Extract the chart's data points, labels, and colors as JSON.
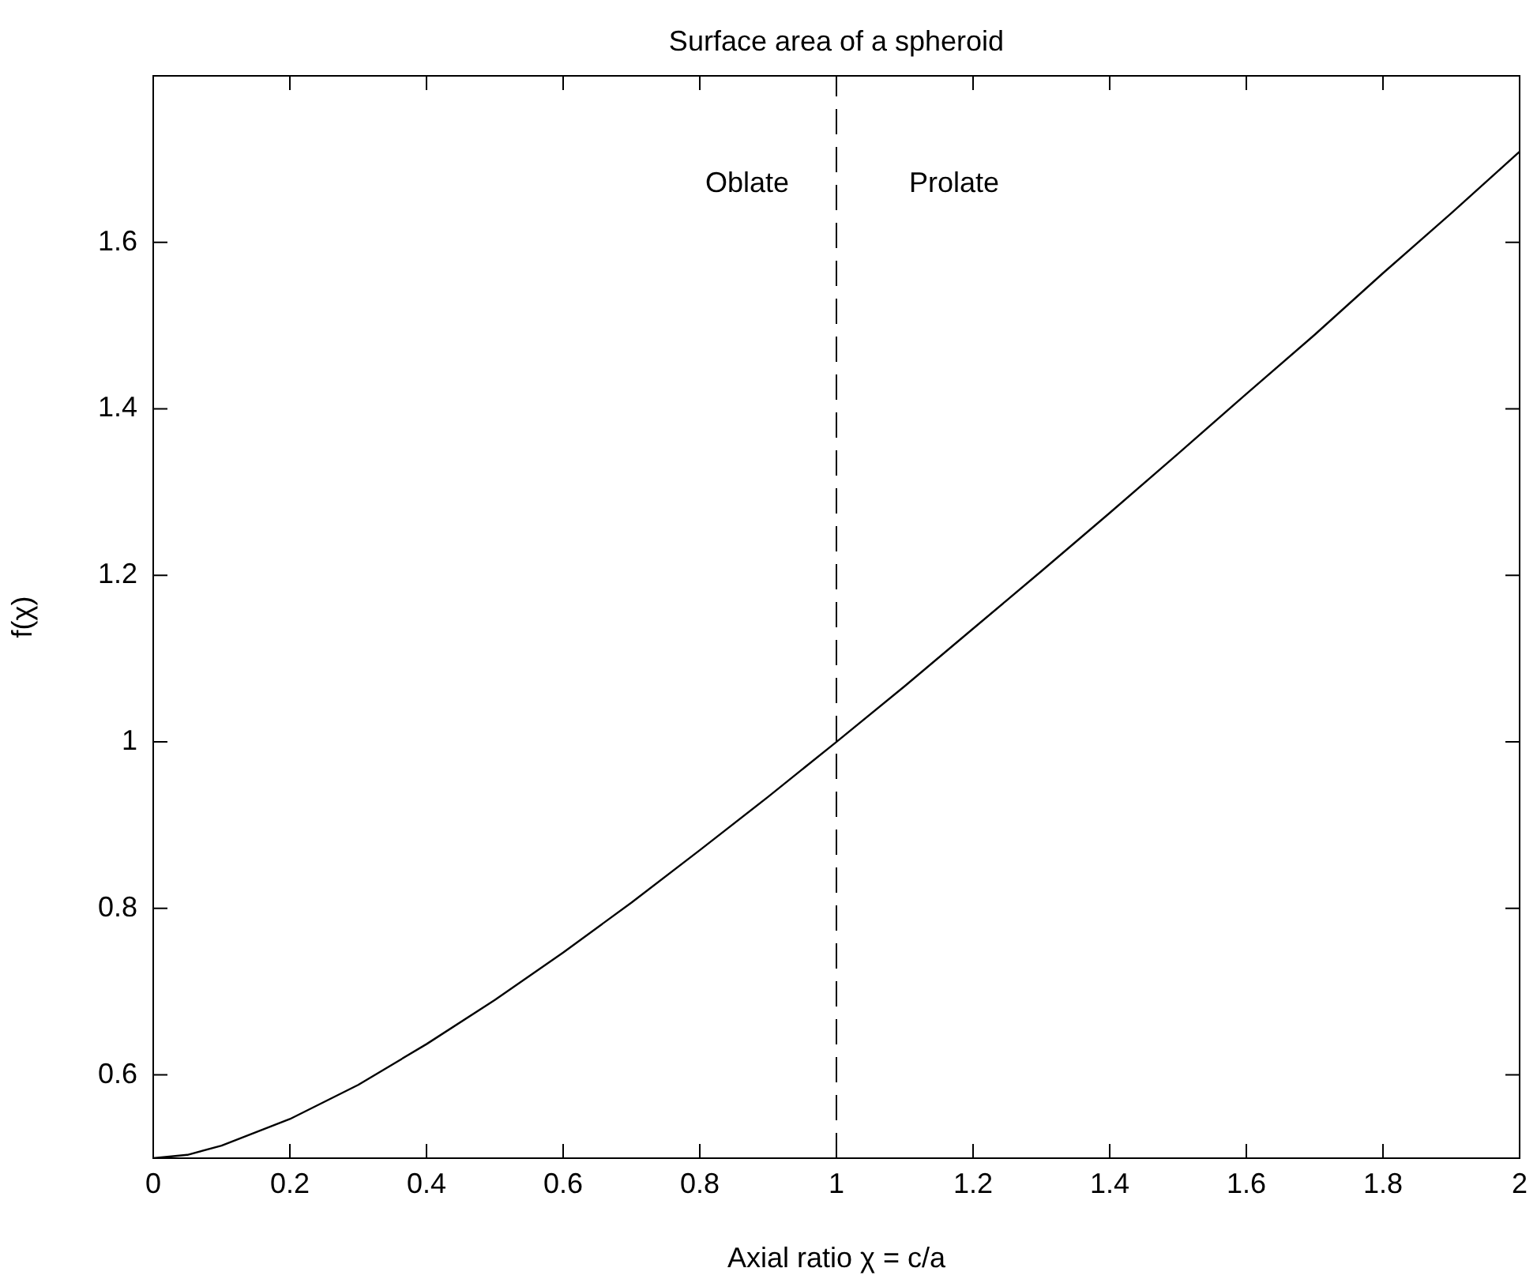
{
  "chart_data": {
    "type": "line",
    "title": "Surface area of a spheroid",
    "xlabel": "Axial ratio χ = c/a",
    "ylabel": "f(χ)",
    "x": [
      0,
      0.05,
      0.1,
      0.2,
      0.3,
      0.4,
      0.5,
      0.6,
      0.7,
      0.8,
      0.9,
      1,
      1.1,
      1.2,
      1.3,
      1.4,
      1.5,
      1.6,
      1.7,
      1.8,
      1.9,
      2
    ],
    "series": [
      {
        "color": "#000000",
        "values": [
          0.5,
          0.504,
          0.515,
          0.547,
          0.588,
          0.637,
          0.69,
          0.747,
          0.807,
          0.87,
          0.934,
          1,
          1.067,
          1.136,
          1.205,
          1.275,
          1.346,
          1.418,
          1.489,
          1.563,
          1.635,
          1.709
        ]
      }
    ],
    "xlim": [
      0,
      2
    ],
    "xticks": [
      0,
      0.2,
      0.4,
      0.6,
      0.8,
      1,
      1.2,
      1.4,
      1.6,
      1.8,
      2
    ],
    "ylim": [
      0.5,
      1.8
    ],
    "yticks": [
      0.6,
      0.8,
      1,
      1.2,
      1.4,
      1.6
    ],
    "ref_lines": [
      {
        "axis": "x",
        "value": 1,
        "color": "#000000",
        "line_style": "dashed"
      }
    ],
    "annotations": [
      "Oblate",
      "Prolate"
    ],
    "grid": false,
    "legend": false,
    "marker": "none",
    "line_style": "solid"
  }
}
